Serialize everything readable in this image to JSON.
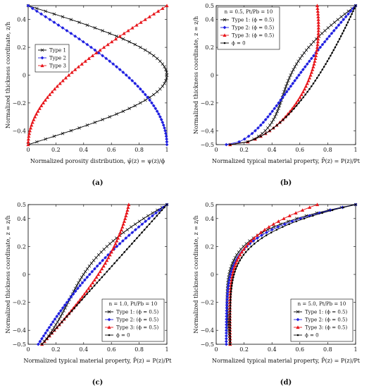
{
  "colors": {
    "type1": "#000000",
    "type2": "#1f1fe0",
    "type3": "#e8161b",
    "phi0": "#000000"
  },
  "chart_data": [
    {
      "panel": "a",
      "caption": "(a)",
      "type": "line",
      "xlabel": "Normalized porosity distribution, ψ̃(z) = ψ(z)/ϕ",
      "ylabel": "Normalized thickness coordinate, z/h",
      "xlim": [
        0,
        1
      ],
      "ylim": [
        -0.5,
        0.5
      ],
      "xticks": [
        "0",
        "0.2",
        "0.4",
        "0.6",
        "0.8",
        "1"
      ],
      "yticks": [
        "−0.4",
        "−0.2",
        "0",
        "0.2",
        "0.4"
      ],
      "grid": false,
      "legend_position": "middle-left",
      "series": [
        {
          "key": "t1",
          "name": "Type 1",
          "marker": "x",
          "color": "#000000",
          "formula": "cos(pi*z)"
        },
        {
          "key": "t2",
          "name": "Type 2",
          "marker": "diamond",
          "color": "#1f1fe0",
          "formula": "cos(pi*z/2+pi/4)"
        },
        {
          "key": "t3",
          "name": "Type 3",
          "marker": "triangle",
          "color": "#e8161b",
          "formula": "1-cos(pi*z/2+pi/4)"
        }
      ]
    },
    {
      "panel": "b",
      "caption": "(b)",
      "type": "line",
      "n": 0.5,
      "ratio": 10,
      "annotation": "n = 0.5, Pt/Pb = 10",
      "xlabel": "Normalized typical material property, P̄(z) = P(z)/Pt",
      "ylabel": "Normalized thickness coordinate, z = z/h",
      "xlim": [
        0,
        1
      ],
      "ylim": [
        -0.5,
        0.5
      ],
      "xticks": [
        "0",
        "0.2",
        "0.4",
        "0.6",
        "0.8",
        "1"
      ],
      "yticks": [
        "−0.5",
        "−0.4",
        "−0.2",
        "0",
        "0.2",
        "0.4",
        "0.5"
      ],
      "grid": false,
      "legend_position": "top-left",
      "series": [
        {
          "key": "t1",
          "name": "Type 1: (ϕ = 0.5)",
          "marker": "x",
          "color": "#000000"
        },
        {
          "key": "t2",
          "name": "Type 2: (ϕ = 0.5)",
          "marker": "diamond",
          "color": "#1f1fe0"
        },
        {
          "key": "t3",
          "name": "Type 3: (ϕ = 0.5)",
          "marker": "triangle",
          "color": "#e8161b"
        },
        {
          "key": "p0",
          "name": "ϕ = 0",
          "marker": "dot",
          "color": "#000000"
        }
      ]
    },
    {
      "panel": "c",
      "caption": "(c)",
      "type": "line",
      "n": 1.0,
      "ratio": 10,
      "annotation": "n = 1.0, Pt/Pb = 10",
      "xlabel": "Normalized typical material property, P̄(z) = P(z)/Pt",
      "ylabel": "Normalized thickness coordinate, z = z/h",
      "xlim": [
        0,
        1
      ],
      "ylim": [
        -0.5,
        0.5
      ],
      "xticks": [
        "0",
        "0.2",
        "0.4",
        "0.6",
        "0.8",
        "1"
      ],
      "yticks": [
        "−0.5",
        "−0.4",
        "−0.2",
        "0",
        "0.2",
        "0.4",
        "0.5"
      ],
      "grid": false,
      "legend_position": "bottom-right",
      "series": [
        {
          "key": "t1",
          "name": "Type 1: (ϕ = 0.5)",
          "marker": "x",
          "color": "#000000"
        },
        {
          "key": "t2",
          "name": "Type 2: (ϕ = 0.5)",
          "marker": "diamond",
          "color": "#1f1fe0"
        },
        {
          "key": "t3",
          "name": "Type 3: (ϕ = 0.5)",
          "marker": "triangle",
          "color": "#e8161b"
        },
        {
          "key": "p0",
          "name": "ϕ = 0",
          "marker": "dot",
          "color": "#000000"
        }
      ]
    },
    {
      "panel": "d",
      "caption": "(d)",
      "type": "line",
      "n": 5.0,
      "ratio": 10,
      "annotation": "n = 5.0, Pt/Pb = 10",
      "xlabel": "Normalized typical material property, P̄(z) = P(z)/Pt",
      "ylabel": "Normalized thickness coordinate, z = z/h",
      "xlim": [
        0,
        1
      ],
      "ylim": [
        -0.5,
        0.5
      ],
      "xticks": [
        "0",
        "0.2",
        "0.4",
        "0.6",
        "0.8",
        "1"
      ],
      "yticks": [
        "−0.5",
        "−0.4",
        "−0.2",
        "0",
        "0.2",
        "0.4",
        "0.5"
      ],
      "grid": false,
      "legend_position": "bottom-right",
      "series": [
        {
          "key": "t1",
          "name": "Type 1: (ϕ = 0.5)",
          "marker": "x",
          "color": "#000000"
        },
        {
          "key": "t2",
          "name": "Type 2: (ϕ = 0.5)",
          "marker": "diamond",
          "color": "#1f1fe0"
        },
        {
          "key": "t3",
          "name": "Type 3: (ϕ = 0.5)",
          "marker": "triangle",
          "color": "#e8161b"
        },
        {
          "key": "p0",
          "name": "ϕ = 0",
          "marker": "dot",
          "color": "#000000"
        }
      ]
    }
  ]
}
